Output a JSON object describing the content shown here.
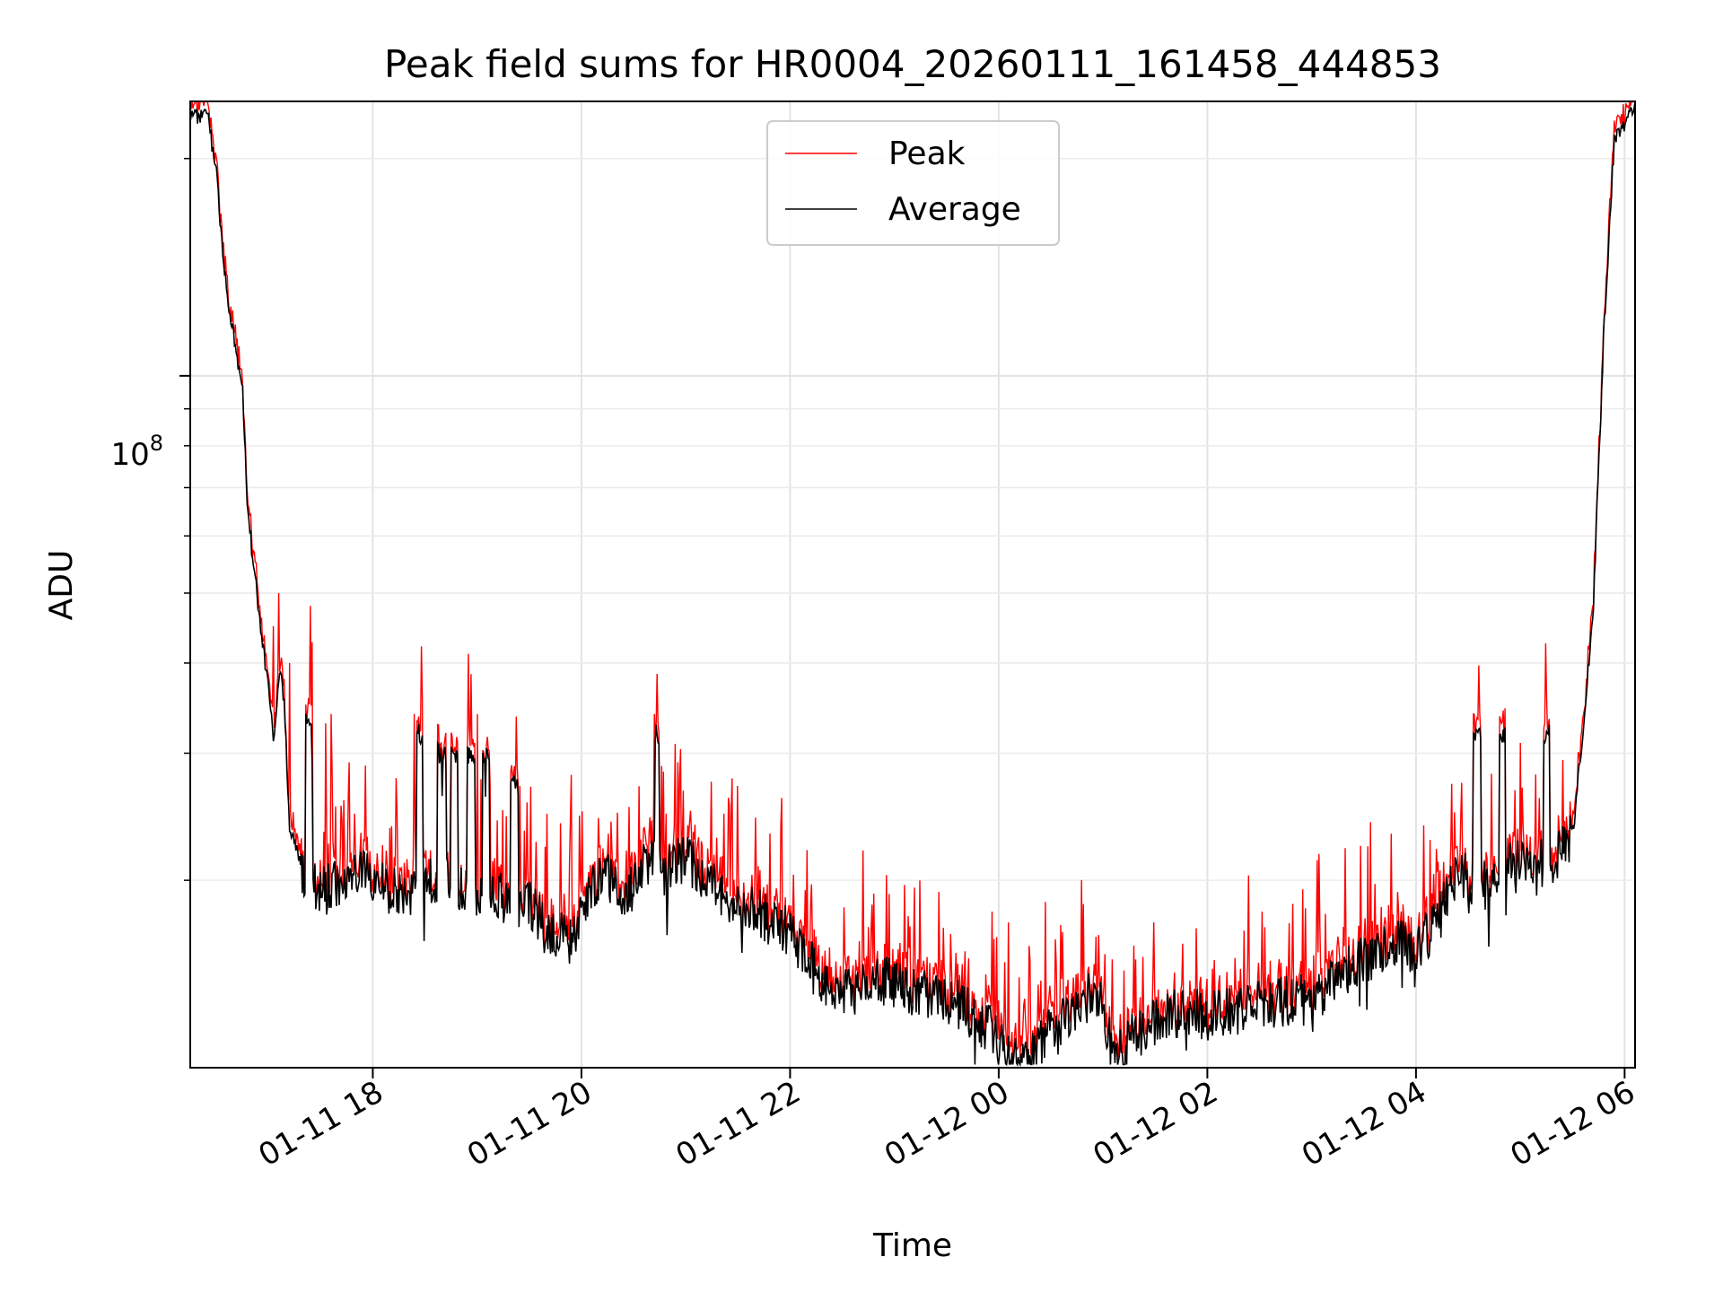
{
  "chart_data": {
    "type": "line",
    "title": "Peak field sums for HR0004_20260111_161458_444853",
    "xlabel": "Time",
    "ylabel": "ADU",
    "yscale": "log",
    "ylim": [
      11000000,
      240000000
    ],
    "xlim_hours": [
      16.25,
      30.1
    ],
    "y_major_tick": {
      "value": 100000000,
      "label_base": "10",
      "label_exp": "8"
    },
    "y_minor_ticks": [
      20000000,
      30000000,
      40000000,
      50000000,
      60000000,
      70000000,
      80000000,
      90000000,
      200000000
    ],
    "x_ticks": [
      {
        "hours": 18,
        "label": "01-11 18"
      },
      {
        "hours": 20,
        "label": "01-11 20"
      },
      {
        "hours": 22,
        "label": "01-11 22"
      },
      {
        "hours": 24,
        "label": "01-12 00"
      },
      {
        "hours": 26,
        "label": "01-12 02"
      },
      {
        "hours": 28,
        "label": "01-12 04"
      },
      {
        "hours": 30,
        "label": "01-12 06"
      }
    ],
    "grid": true,
    "legend_position": "top-center",
    "series": [
      {
        "name": "Peak",
        "color": "#ff0000"
      },
      {
        "name": "Average",
        "color": "#000000"
      }
    ],
    "average_profile": [
      [
        16.25,
        230000000
      ],
      [
        16.42,
        228000000
      ],
      [
        16.5,
        190000000
      ],
      [
        16.6,
        130000000
      ],
      [
        16.7,
        105000000
      ],
      [
        16.75,
        97000000
      ],
      [
        16.8,
        65000000
      ],
      [
        16.9,
        48000000
      ],
      [
        17.0,
        37000000
      ],
      [
        17.05,
        31000000
      ],
      [
        17.1,
        39000000
      ],
      [
        17.15,
        36000000
      ],
      [
        17.2,
        24000000
      ],
      [
        17.3,
        21000000
      ],
      [
        17.4,
        20000000
      ],
      [
        17.5,
        19500000
      ],
      [
        17.7,
        20000000
      ],
      [
        17.9,
        21000000
      ],
      [
        18.1,
        19500000
      ],
      [
        18.3,
        19000000
      ],
      [
        18.6,
        20000000
      ],
      [
        18.9,
        19500000
      ],
      [
        19.2,
        19000000
      ],
      [
        19.5,
        18500000
      ],
      [
        19.7,
        17000000
      ],
      [
        19.9,
        16500000
      ],
      [
        20.0,
        18000000
      ],
      [
        20.2,
        20500000
      ],
      [
        20.4,
        19000000
      ],
      [
        20.5,
        19500000
      ],
      [
        20.6,
        21500000
      ],
      [
        20.8,
        20500000
      ],
      [
        21.0,
        21500000
      ],
      [
        21.2,
        20000000
      ],
      [
        21.4,
        19000000
      ],
      [
        21.6,
        18500000
      ],
      [
        21.8,
        17500000
      ],
      [
        22.0,
        17000000
      ],
      [
        22.1,
        16000000
      ],
      [
        22.3,
        14500000
      ],
      [
        22.6,
        14000000
      ],
      [
        22.9,
        14500000
      ],
      [
        23.2,
        14000000
      ],
      [
        23.6,
        13500000
      ],
      [
        23.9,
        12500000
      ],
      [
        24.1,
        11300000
      ],
      [
        24.3,
        11200000
      ],
      [
        24.5,
        12500000
      ],
      [
        24.7,
        13000000
      ],
      [
        24.9,
        14000000
      ],
      [
        25.0,
        13500000
      ],
      [
        25.1,
        11200000
      ],
      [
        25.3,
        12200000
      ],
      [
        25.5,
        12800000
      ],
      [
        25.8,
        13200000
      ],
      [
        26.0,
        13000000
      ],
      [
        26.3,
        13200000
      ],
      [
        26.6,
        13500000
      ],
      [
        26.9,
        13700000
      ],
      [
        27.0,
        13300000
      ],
      [
        27.2,
        14500000
      ],
      [
        27.5,
        15500000
      ],
      [
        27.8,
        16500000
      ],
      [
        28.0,
        16000000
      ],
      [
        28.2,
        17500000
      ],
      [
        28.4,
        20500000
      ],
      [
        28.7,
        19500000
      ],
      [
        29.0,
        21500000
      ],
      [
        29.3,
        21000000
      ],
      [
        29.5,
        23000000
      ],
      [
        29.6,
        32000000
      ],
      [
        29.7,
        48000000
      ],
      [
        29.8,
        115000000
      ],
      [
        29.9,
        210000000
      ],
      [
        30.1,
        240000000
      ]
    ],
    "burst_events": [
      {
        "start": 17.35,
        "end": 17.42,
        "value": 33000000
      },
      {
        "start": 18.42,
        "end": 18.48,
        "value": 32000000
      },
      {
        "start": 18.62,
        "end": 18.7,
        "value": 30000000
      },
      {
        "start": 18.75,
        "end": 18.82,
        "value": 30000000
      },
      {
        "start": 18.9,
        "end": 18.98,
        "value": 30000000
      },
      {
        "start": 19.05,
        "end": 19.12,
        "value": 30000000
      },
      {
        "start": 19.32,
        "end": 19.4,
        "value": 27000000
      },
      {
        "start": 20.7,
        "end": 20.75,
        "value": 32000000
      },
      {
        "start": 28.55,
        "end": 28.62,
        "value": 32000000
      },
      {
        "start": 28.8,
        "end": 28.86,
        "value": 32000000
      },
      {
        "start": 29.22,
        "end": 29.28,
        "value": 32000000
      }
    ],
    "peak_spikes": [
      [
        17.05,
        45000000
      ],
      [
        17.1,
        50000000
      ],
      [
        17.2,
        40000000
      ],
      [
        17.55,
        33000000
      ],
      [
        17.6,
        34000000
      ],
      [
        18.4,
        34000000
      ],
      [
        18.7,
        32000000
      ],
      [
        19.0,
        34000000
      ],
      [
        19.35,
        28000000
      ],
      [
        20.7,
        34000000
      ],
      [
        20.55,
        27000000
      ],
      [
        28.55,
        34000000
      ],
      [
        29.25,
        36000000
      ],
      [
        29.0,
        31000000
      ],
      [
        19.9,
        28000000
      ],
      [
        24.3,
        15500000
      ],
      [
        25.2,
        15000000
      ],
      [
        22.2,
        18500000
      ],
      [
        21.8,
        18000000
      ]
    ]
  }
}
